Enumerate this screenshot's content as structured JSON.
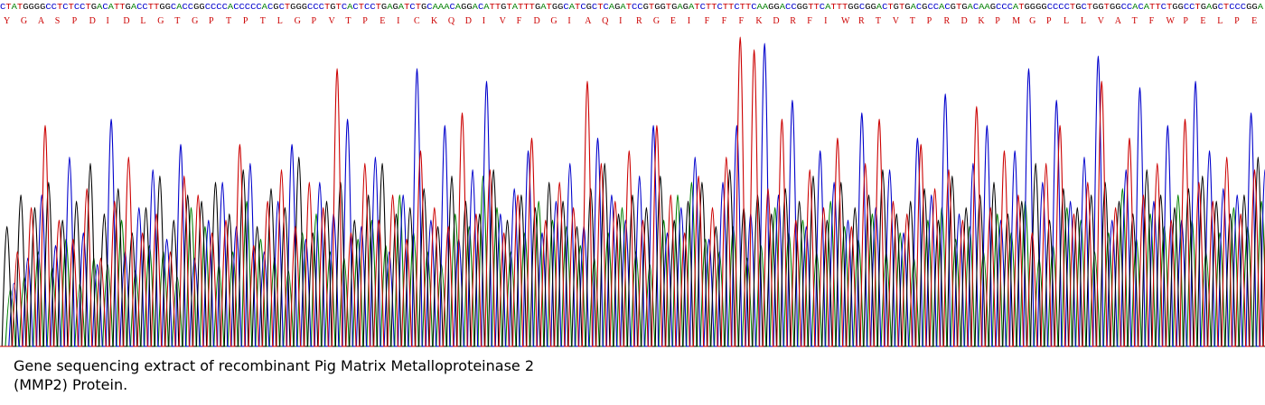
{
  "chart_data": {
    "type": "line",
    "title": "",
    "xlabel": "",
    "ylabel": "",
    "grid": false,
    "legend": "none",
    "dna_sequence": "CTATGGGGCCTCTCCTGACATTGACCTTGGCACCGGCCCCACCCCCACGCTGGGCCCTGTCACTCCTGAGATCTGCAAACAGGACATTGTATTTGATGGCATCGCTCAGATCCGTGGTGAGATCTTCTTCTTCAAGGACCGGTTCATTTGGCGGACTGTGACGCCACGTGACAAGCCCATGGGGCCCCTGCTGGTGGCCACATTCTGGCCTGAGCTCCCGGA",
    "protein_sequence": [
      "Y",
      "G",
      "A",
      "S",
      "P",
      "D",
      "I",
      "D",
      "L",
      "G",
      "T",
      "G",
      "P",
      "T",
      "P",
      "T",
      "L",
      "G",
      "P",
      "V",
      "T",
      "P",
      "E",
      "I",
      "C",
      "K",
      "Q",
      "D",
      "I",
      "V",
      "F",
      "D",
      "G",
      "I",
      "A",
      "Q",
      "I",
      "R",
      "G",
      "E",
      "I",
      "F",
      "F",
      "F",
      "K",
      "D",
      "R",
      "F",
      "I",
      "W",
      "R",
      "T",
      "V",
      "T",
      "P",
      "R",
      "D",
      "K",
      "P",
      "M",
      "G",
      "P",
      "L",
      "L",
      "V",
      "A",
      "T",
      "F",
      "W",
      "P",
      "E",
      "L",
      "P",
      "E"
    ],
    "base_colors": {
      "A": "#008000",
      "C": "#0000cc",
      "G": "#000000",
      "T": "#cc0000"
    },
    "protein_color": "#cc0000",
    "y_range": [
      0,
      100
    ],
    "series": [
      {
        "base": "A",
        "values": [
          18,
          22,
          30,
          25,
          34,
          20,
          28,
          26,
          40,
          24,
          32,
          30,
          22,
          44,
          38,
          26,
          30,
          46,
          34,
          28,
          24,
          36,
          42,
          30,
          28,
          34,
          40,
          32,
          48,
          36,
          30,
          26,
          42,
          38,
          54,
          44,
          30,
          36,
          46,
          40,
          38,
          32,
          28,
          36,
          44,
          30,
          26,
          40,
          48,
          52,
          34,
          30,
          38,
          28,
          32,
          44,
          36,
          40,
          30,
          46,
          38,
          34,
          42,
          30,
          36,
          28,
          40,
          44,
          34,
          38,
          30,
          42,
          36,
          46,
          28,
          32,
          44,
          40,
          30,
          36,
          50,
          34,
          42,
          38,
          48,
          40,
          30,
          36,
          44,
          38,
          46
        ]
      },
      {
        "base": "C",
        "values": [
          20,
          28,
          48,
          32,
          60,
          36,
          26,
          72,
          30,
          44,
          56,
          34,
          64,
          28,
          40,
          52,
          38,
          58,
          30,
          46,
          64,
          34,
          52,
          42,
          72,
          38,
          60,
          30,
          48,
          88,
          40,
          70,
          34,
          56,
          84,
          42,
          50,
          62,
          36,
          46,
          58,
          38,
          66,
          48,
          40,
          54,
          70,
          36,
          44,
          60,
          34,
          52,
          70,
          42,
          96,
          48,
          78,
          38,
          62,
          52,
          40,
          74,
          44,
          56,
          36,
          66,
          48,
          80,
          42,
          58,
          70,
          40,
          62,
          88,
          52,
          78,
          46,
          60,
          92,
          40,
          56,
          82,
          46,
          70,
          40,
          84,
          62,
          50,
          48,
          74,
          56
        ]
      },
      {
        "base": "G",
        "values": [
          38,
          48,
          44,
          52,
          40,
          46,
          58,
          42,
          50,
          36,
          44,
          54,
          40,
          48,
          46,
          52,
          42,
          56,
          38,
          50,
          44,
          60,
          36,
          46,
          52,
          40,
          48,
          58,
          42,
          44,
          50,
          38,
          54,
          46,
          42,
          56,
          40,
          48,
          44,
          52,
          46,
          38,
          50,
          58,
          42,
          48,
          44,
          54,
          40,
          46,
          52,
          38,
          56,
          44,
          48,
          42,
          50,
          46,
          54,
          40,
          52,
          44,
          48,
          56,
          42,
          46,
          50,
          40,
          54,
          44,
          48,
          52,
          42,
          46,
          58,
          40,
          50,
          44,
          48,
          52,
          46,
          42,
          56,
          48,
          44,
          50,
          54,
          46,
          42,
          48,
          60
        ]
      },
      {
        "base": "T",
        "values": [
          30,
          44,
          70,
          40,
          34,
          50,
          28,
          46,
          60,
          36,
          42,
          30,
          54,
          48,
          36,
          40,
          64,
          32,
          46,
          56,
          38,
          52,
          44,
          88,
          36,
          58,
          40,
          48,
          34,
          62,
          44,
          38,
          74,
          42,
          56,
          36,
          48,
          66,
          40,
          52,
          44,
          84,
          58,
          46,
          62,
          40,
          70,
          48,
          36,
          54,
          44,
          60,
          98,
          94,
          50,
          72,
          40,
          56,
          44,
          66,
          38,
          58,
          72,
          46,
          42,
          64,
          50,
          56,
          40,
          76,
          44,
          62,
          48,
          36,
          58,
          70,
          42,
          52,
          84,
          44,
          66,
          48,
          58,
          40,
          72,
          52,
          46,
          60,
          42,
          56,
          70
        ]
      }
    ]
  },
  "caption": {
    "line1": "Gene sequencing extract of recombinant Pig Matrix Metalloproteinase 2",
    "line2": "(MMP2) Protein."
  }
}
